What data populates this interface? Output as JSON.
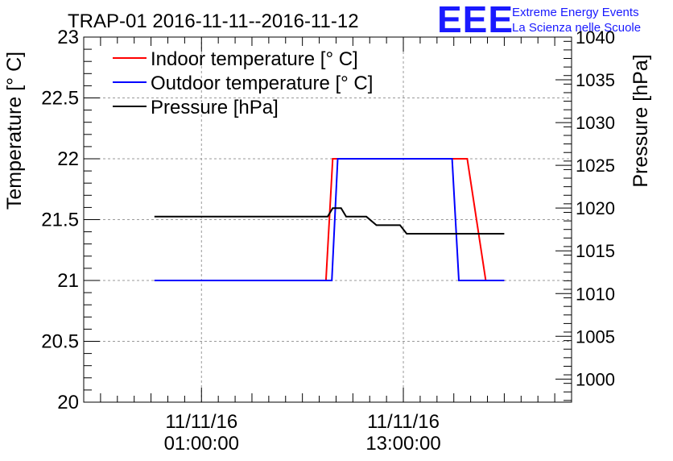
{
  "chart_data": {
    "type": "line",
    "title": "TRAP-01 2016-11-11--2016-11-12",
    "logo": {
      "text": "EEE",
      "line1": "Extreme Energy Events",
      "line2": "La Scienza nelle Scuole",
      "color": "#1a1aff"
    },
    "ylabel": "Temperature [° C]",
    "y2label": "Pressure [hPa]",
    "ylim": [
      20,
      23
    ],
    "y2lim": [
      997.3,
      1040
    ],
    "xlim": [
      -6,
      23
    ],
    "y_ticks": [
      "20",
      "20.5",
      "21",
      "21.5",
      "22",
      "22.5",
      "23"
    ],
    "y2_ticks": [
      "1000",
      "1005",
      "1010",
      "1015",
      "1020",
      "1025",
      "1030",
      "1035",
      "1040"
    ],
    "x_ticks": [
      {
        "x": 1,
        "date": "11/11/16",
        "time": "01:00:00"
      },
      {
        "x": 13,
        "date": "11/11/16",
        "time": "13:00:00"
      }
    ],
    "grid": true,
    "legend_position": "top-left",
    "series": [
      {
        "name": "Indoor temperature [° C]",
        "axis": "left",
        "color": "#ff0000",
        "x": [
          -1.8,
          8.4,
          8.8,
          16.8,
          17.9,
          19.0
        ],
        "y": [
          21,
          21,
          22,
          22,
          21,
          21
        ]
      },
      {
        "name": "Outdoor temperature [° C]",
        "axis": "left",
        "color": "#0000ff",
        "x": [
          -1.8,
          8.75,
          9.1,
          15.9,
          16.3,
          19.0
        ],
        "y": [
          21,
          21,
          22,
          22,
          21,
          21
        ]
      },
      {
        "name": "Pressure [hPa]",
        "axis": "right",
        "color": "#000000",
        "x": [
          -1.8,
          8.5,
          8.8,
          9.3,
          9.6,
          10.8,
          11.4,
          12.8,
          13.2,
          19.0
        ],
        "y": [
          1019,
          1019,
          1020,
          1020,
          1019,
          1019,
          1018,
          1018,
          1017,
          1017
        ]
      }
    ]
  }
}
